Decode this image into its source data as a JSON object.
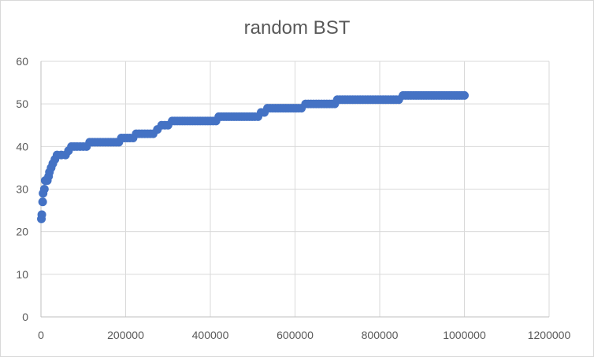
{
  "chart_data": {
    "type": "scatter",
    "title": "random BST",
    "xlabel": "",
    "ylabel": "",
    "xlim": [
      0,
      1200000
    ],
    "ylim": [
      0,
      60
    ],
    "x_ticks": [
      "0",
      "200000",
      "400000",
      "600000",
      "800000",
      "1000000",
      "1200000"
    ],
    "y_ticks": [
      "0",
      "10",
      "20",
      "30",
      "40",
      "50",
      "60"
    ],
    "grid": true,
    "legend": "none",
    "series_color": "#4472c4",
    "points": [
      [
        1000,
        23
      ],
      [
        2000,
        24
      ],
      [
        4000,
        27
      ],
      [
        5000,
        29
      ],
      [
        8000,
        30
      ],
      [
        10000,
        32
      ],
      [
        15000,
        32
      ],
      [
        18000,
        33
      ],
      [
        20000,
        34
      ],
      [
        24000,
        35
      ],
      [
        28000,
        36
      ],
      [
        33000,
        37
      ],
      [
        38000,
        38
      ],
      [
        48000,
        38
      ],
      [
        58000,
        38
      ],
      [
        65000,
        39
      ],
      [
        72000,
        40
      ],
      [
        85000,
        40
      ],
      [
        100000,
        40
      ],
      [
        115000,
        41
      ],
      [
        140000,
        41
      ],
      [
        165000,
        41
      ],
      [
        190000,
        42
      ],
      [
        210000,
        42
      ],
      [
        225000,
        43
      ],
      [
        245000,
        43
      ],
      [
        265000,
        43
      ],
      [
        275000,
        44
      ],
      [
        285000,
        45
      ],
      [
        300000,
        45
      ],
      [
        310000,
        46
      ],
      [
        340000,
        46
      ],
      [
        370000,
        46
      ],
      [
        400000,
        46
      ],
      [
        420000,
        47
      ],
      [
        450000,
        47
      ],
      [
        480000,
        47
      ],
      [
        505000,
        47
      ],
      [
        520000,
        48
      ],
      [
        535000,
        49
      ],
      [
        560000,
        49
      ],
      [
        590000,
        49
      ],
      [
        615000,
        49
      ],
      [
        625000,
        50
      ],
      [
        650000,
        50
      ],
      [
        675000,
        50
      ],
      [
        700000,
        51
      ],
      [
        730000,
        51
      ],
      [
        760000,
        51
      ],
      [
        790000,
        51
      ],
      [
        820000,
        51
      ],
      [
        845000,
        51
      ],
      [
        855000,
        52
      ],
      [
        880000,
        52
      ],
      [
        910000,
        52
      ],
      [
        940000,
        52
      ],
      [
        970000,
        52
      ],
      [
        1000000,
        52
      ]
    ]
  }
}
